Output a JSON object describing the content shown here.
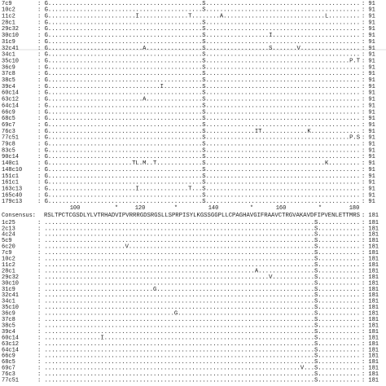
{
  "alignment": {
    "top_rows": [
      {
        "label": "7c9",
        "seq": ": G............................................S............................................",
        "end": ": 91"
      },
      {
        "label": "10c2",
        "seq": ": G............................................S............................................",
        "end": ": 91"
      },
      {
        "label": "11c2",
        "seq": ": G.........................I..............T........A.............................L.........",
        "end": ": 91"
      },
      {
        "label": "28c1",
        "seq": ": G............................................S............................................",
        "end": ": 91"
      },
      {
        "label": "29c32",
        "seq": ": G............................................S............................................",
        "end": ": 91"
      },
      {
        "label": "30c10",
        "seq": ": G............................................S..................I.........................",
        "end": ": 91"
      },
      {
        "label": "31c9",
        "seq": ": G............................................S............................................",
        "end": ": 91"
      },
      {
        "label": "32c41",
        "seq": ": G...........................A................S..................S.......V.................",
        "end": ": 91"
      },
      {
        "label": "34c1",
        "seq": ": G............................................S............................................",
        "end": ": 91"
      },
      {
        "label": "35c10",
        "seq": ": G............................................S.........................................P.T",
        "end": ": 91"
      },
      {
        "label": "36c9",
        "seq": ": G............................................S............................................",
        "end": ": 91"
      },
      {
        "label": "37c8",
        "seq": ": G............................................S............................................",
        "end": ": 91"
      },
      {
        "label": "38c5",
        "seq": ": G............................................S............................................",
        "end": ": 91"
      },
      {
        "label": "39c4",
        "seq": ": G................................I...........S............................................",
        "end": ": 91"
      },
      {
        "label": "60c14",
        "seq": ": G............................................S............................................",
        "end": ": 91"
      },
      {
        "label": "63c12",
        "seq": ": G...........................A................S............................................",
        "end": ": 91"
      },
      {
        "label": "64c14",
        "seq": ": G............................................S............................................",
        "end": ": 91"
      },
      {
        "label": "66c9",
        "seq": ": G............................................S............................................",
        "end": ": 91"
      },
      {
        "label": "68c5",
        "seq": ": G............................................S............................................",
        "end": ": 91"
      },
      {
        "label": "69c7",
        "seq": ": G............................................S............................................",
        "end": ": 91"
      },
      {
        "label": "76c3",
        "seq": ": G............................................S..............IT.............K..............",
        "end": ": 91"
      },
      {
        "label": "77c51",
        "seq": ": G............................................S.........................................P.S",
        "end": ": 91"
      },
      {
        "label": "79c8",
        "seq": ": G............................................S............................................",
        "end": ": 91"
      },
      {
        "label": "83c5",
        "seq": ": G............................................S............................................",
        "end": ": 91"
      },
      {
        "label": "90c14",
        "seq": ": G............................................S............................................",
        "end": ": 91"
      },
      {
        "label": "140c1",
        "seq": ": G........................TL.M..T.............S..................................K.........",
        "end": ": 91"
      },
      {
        "label": "148c10",
        "seq": ": G............................................S............................................",
        "end": ": 91"
      },
      {
        "label": "151c1",
        "seq": ": G............................................S............................................",
        "end": ": 91"
      },
      {
        "label": "161c1",
        "seq": ": G............................................S............................................",
        "end": ": 91"
      },
      {
        "label": "163c13",
        "seq": ": G.........................I..............T...S............................................",
        "end": ": 91"
      },
      {
        "label": "165c40",
        "seq": ": G............................................S............................................",
        "end": ": 91"
      },
      {
        "label": "179c13",
        "seq": ": G............................................S............................................",
        "end": ": 91"
      }
    ],
    "ruler": [
      "100",
      "*",
      "120",
      "*",
      "140",
      "*",
      "160",
      "*",
      "180"
    ],
    "consensus": {
      "label": "Consensus:",
      "seq": "RSLTPCTCGSDLYLVTRHADVIPVRRRGDSRGSLLSPRPISYLKGSSGGPLLCPAGHAVGIFRAAVCTRGVAKAVDFIPVENLETTMRS",
      "end": ": 181"
    },
    "bottom_rows": [
      {
        "label": "1c25",
        "seq": ": .............................................................................S............",
        "end": ": 181"
      },
      {
        "label": "2c13",
        "seq": ": .............................................................................S............",
        "end": ": 181"
      },
      {
        "label": "4c24",
        "seq": ": .............................................................................S............",
        "end": ": 181"
      },
      {
        "label": "5c9",
        "seq": ": .............................................................................S............",
        "end": ": 181"
      },
      {
        "label": "6c20",
        "seq": ": .......................V.....................................................S............",
        "end": ": 181"
      },
      {
        "label": "7c9",
        "seq": ": .............................................................................S............",
        "end": ": 181"
      },
      {
        "label": "10c2",
        "seq": ": .............................................................................S............",
        "end": ": 181"
      },
      {
        "label": "11c2",
        "seq": ": .............................................................................S............",
        "end": ": 181"
      },
      {
        "label": "28c1",
        "seq": ": ............................................................A................S............",
        "end": ": 181"
      },
      {
        "label": "29c32",
        "seq": ": ................................................................V............S............",
        "end": ": 181"
      },
      {
        "label": "30c10",
        "seq": ": .............................................................................S............",
        "end": ": 181"
      },
      {
        "label": "31c9",
        "seq": ": ...............................G.............................................S............",
        "end": ": 181"
      },
      {
        "label": "32c41",
        "seq": ": .............................................................................S............",
        "end": ": 181"
      },
      {
        "label": "34c1",
        "seq": ": .............................................................................S............",
        "end": ": 181"
      },
      {
        "label": "35c10",
        "seq": ": .............................................................................S............",
        "end": ": 181"
      },
      {
        "label": "36c9",
        "seq": ": .....................................G.......................................S............",
        "end": ": 181"
      },
      {
        "label": "37c8",
        "seq": ": .............................................................................S............",
        "end": ": 181"
      },
      {
        "label": "38c5",
        "seq": ": .............................................................................S............",
        "end": ": 181"
      },
      {
        "label": "39c4",
        "seq": ": .............................................................................S............",
        "end": ": 181"
      },
      {
        "label": "60c14",
        "seq": ": ................I............................................................S............",
        "end": ": 181"
      },
      {
        "label": "63c12",
        "seq": ": .............................................................................S............",
        "end": ": 181"
      },
      {
        "label": "64c14",
        "seq": ": .............................................................................S............",
        "end": ": 181"
      },
      {
        "label": "66c9",
        "seq": ": .............................................................................S............",
        "end": ": 181"
      },
      {
        "label": "68c5",
        "seq": ": .............................................................................S............",
        "end": ": 181"
      },
      {
        "label": "69c7",
        "seq": ": .........................................................................V...S............",
        "end": ": 181"
      },
      {
        "label": "76c3",
        "seq": ": .............................................................................S............",
        "end": ": 181"
      },
      {
        "label": "77c51",
        "seq": ": .............................................................................S............",
        "end": ": 181"
      }
    ]
  }
}
